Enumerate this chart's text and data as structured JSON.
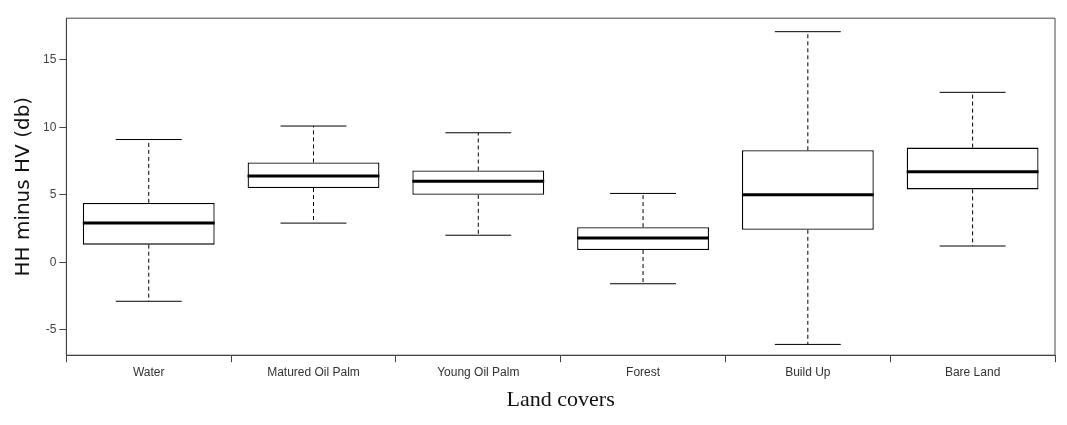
{
  "chart_data": {
    "type": "box",
    "xlabel": "Land covers",
    "ylabel": "HH minus HV (db)",
    "categories": [
      "Water",
      "Matured Oil Palm",
      "Young Oil Palm",
      "Forest",
      "Build Up",
      "Bare Land"
    ],
    "boxes": [
      {
        "low": -2.9,
        "q1": 1.3,
        "median": 2.9,
        "q3": 4.4,
        "high": 9.1
      },
      {
        "low": 2.9,
        "q1": 5.5,
        "median": 6.4,
        "q3": 7.4,
        "high": 10.1
      },
      {
        "low": 2.0,
        "q1": 5.0,
        "median": 6.0,
        "q3": 6.8,
        "high": 9.6
      },
      {
        "low": -1.6,
        "q1": 0.9,
        "median": 1.8,
        "q3": 2.6,
        "high": 5.1
      },
      {
        "low": -6.1,
        "q1": 2.4,
        "median": 5.0,
        "q3": 8.3,
        "high": 17.1
      },
      {
        "low": 1.2,
        "q1": 5.4,
        "median": 6.7,
        "q3": 8.5,
        "high": 12.6
      }
    ],
    "ylim": [
      -6.9,
      18.1
    ],
    "yticks": [
      -5,
      0,
      5,
      10,
      15
    ]
  }
}
